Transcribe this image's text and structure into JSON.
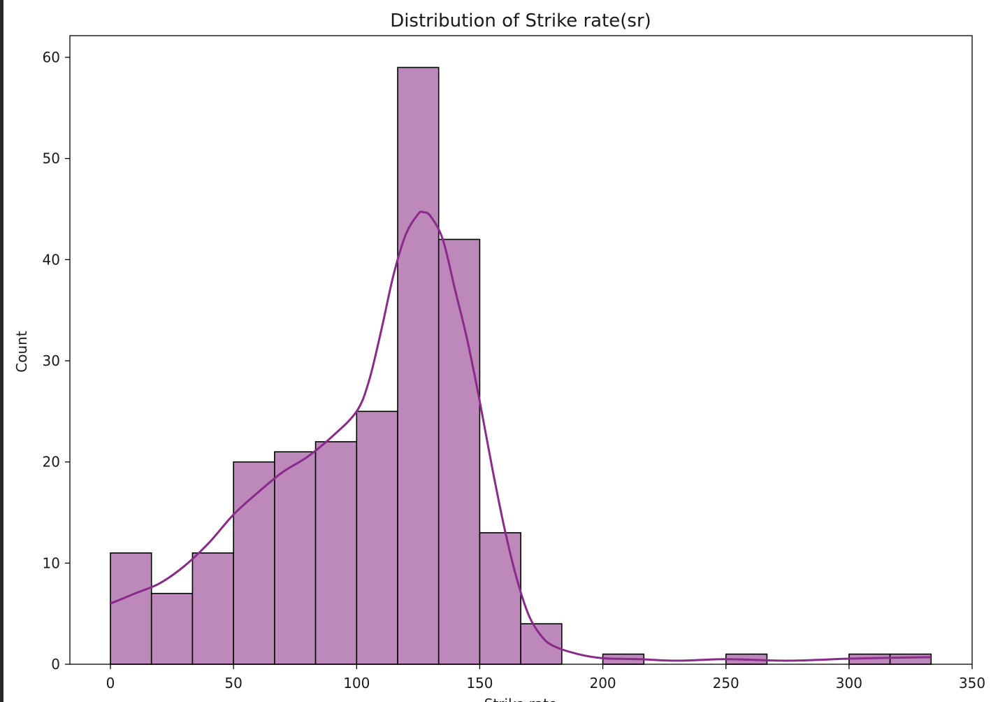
{
  "chart_data": {
    "type": "bar",
    "subtype": "histogram-with-kde",
    "title": "Distribution of Strike rate(sr)",
    "xlabel": "Strike rate",
    "ylabel": "Count",
    "xlim": [
      -17,
      350
    ],
    "ylim": [
      0,
      60
    ],
    "xticks": [
      0,
      50,
      100,
      150,
      200,
      250,
      300,
      350
    ],
    "yticks": [
      0,
      10,
      20,
      30,
      40,
      50,
      60
    ],
    "grid": false,
    "bin_width": 16.67,
    "bins": [
      {
        "start": 0,
        "end": 16.67,
        "count": 11
      },
      {
        "start": 16.67,
        "end": 33.33,
        "count": 7
      },
      {
        "start": 33.33,
        "end": 50,
        "count": 11
      },
      {
        "start": 50,
        "end": 66.67,
        "count": 20
      },
      {
        "start": 66.67,
        "end": 83.33,
        "count": 21
      },
      {
        "start": 83.33,
        "end": 100,
        "count": 22
      },
      {
        "start": 100,
        "end": 116.67,
        "count": 25
      },
      {
        "start": 116.67,
        "end": 133.33,
        "count": 59
      },
      {
        "start": 133.33,
        "end": 150,
        "count": 42
      },
      {
        "start": 150,
        "end": 166.67,
        "count": 13
      },
      {
        "start": 166.67,
        "end": 183.33,
        "count": 4
      },
      {
        "start": 183.33,
        "end": 200,
        "count": 0
      },
      {
        "start": 200,
        "end": 216.67,
        "count": 1
      },
      {
        "start": 216.67,
        "end": 233.33,
        "count": 0
      },
      {
        "start": 233.33,
        "end": 250,
        "count": 0
      },
      {
        "start": 250,
        "end": 266.67,
        "count": 1
      },
      {
        "start": 266.67,
        "end": 283.33,
        "count": 0
      },
      {
        "start": 283.33,
        "end": 300,
        "count": 0
      },
      {
        "start": 300,
        "end": 316.67,
        "count": 1
      },
      {
        "start": 316.67,
        "end": 333.33,
        "count": 1
      }
    ],
    "kde": {
      "x": [
        0,
        10,
        20,
        30,
        40,
        50,
        60,
        70,
        80,
        90,
        100,
        105,
        110,
        115,
        120,
        125,
        127,
        130,
        135,
        140,
        145,
        150,
        155,
        160,
        165,
        170,
        175,
        180,
        190,
        200,
        215,
        230,
        250,
        275,
        300,
        320,
        333.33
      ],
      "y": [
        6,
        7,
        8,
        9.7,
        12,
        14.8,
        17,
        19,
        20.5,
        22.5,
        25,
        28,
        33,
        38.5,
        42.5,
        44.5,
        44.7,
        44.3,
        42,
        37,
        32,
        26,
        19.5,
        13.5,
        8.5,
        4.8,
        2.8,
        1.8,
        1.0,
        0.6,
        0.5,
        0.35,
        0.5,
        0.35,
        0.55,
        0.65,
        0.7
      ]
    },
    "colors": {
      "bar_fill": "#bd88ba",
      "bar_edge": "#000000",
      "kde_line": "#8a2a8a"
    }
  }
}
